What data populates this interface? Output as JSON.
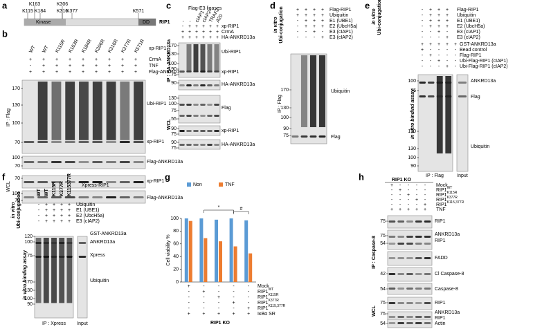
{
  "panels": {
    "a": {
      "letter": "a",
      "sites": [
        "K115",
        "K163",
        "K184",
        "K306",
        "K316",
        "K377",
        "K571"
      ],
      "domains": [
        "Kinase",
        "DD"
      ],
      "protein": "RIP1"
    },
    "b": {
      "letter": "b",
      "lanes": [
        "WT",
        "WT",
        "K115R",
        "K163R",
        "K184R",
        "K306R",
        "K316R",
        "K377R",
        "K571R"
      ],
      "header": "xp-RIP1",
      "conditions": [
        {
          "label": "CrmA",
          "signs": [
            "+",
            "+",
            "+",
            "+",
            "+",
            "+",
            "+",
            "+",
            "+"
          ]
        },
        {
          "label": "TNF",
          "signs": [
            "-",
            "+",
            "+",
            "+",
            "+",
            "+",
            "+",
            "+",
            "+"
          ]
        },
        {
          "label": "Flag-ANKRD13a",
          "signs": [
            "+",
            "+",
            "+",
            "+",
            "+",
            "+",
            "+",
            "+",
            "+"
          ]
        }
      ],
      "groups": [
        "IP : Flag",
        "WCL"
      ],
      "bands": [
        "Ubi-RIP1",
        "xp-RIP1",
        "Flag-ANKRD13a",
        "xp-RIP1",
        "Flag-ANKRD13a"
      ],
      "markers": [
        170,
        130,
        100,
        70,
        100,
        70,
        70,
        100,
        70
      ]
    },
    "c": {
      "letter": "c",
      "header": "Flag-E3 ligases",
      "lanes": [
        "-",
        "-",
        "cIAP1",
        "cIAP2",
        "TRAF2",
        "A20"
      ],
      "conditions": [
        {
          "label": "xp-RIP1",
          "signs": [
            "-",
            "+",
            "+",
            "+",
            "+",
            "+"
          ]
        },
        {
          "label": "CrmA",
          "signs": [
            "+",
            "+",
            "+",
            "+",
            "+",
            "+"
          ]
        },
        {
          "label": "HA-ANKRD13a",
          "signs": [
            "+",
            "+",
            "+",
            "+",
            "+",
            "+"
          ]
        }
      ],
      "groups": [
        "IP : HA-ANKRD13a",
        "WCL"
      ],
      "bands": [
        "Ubi-RIP1",
        "xp-RIP1",
        "HA-ANKRD13a",
        "Flag",
        "xp-RIP1",
        "HA-ANKRD13a"
      ],
      "markers": [
        170,
        130,
        100,
        90,
        75,
        90,
        130,
        100,
        75,
        55,
        90,
        75,
        90,
        75
      ]
    },
    "d": {
      "letter": "d",
      "side": [
        "in vitro",
        "Ubi-conjugation"
      ],
      "conditions": [
        {
          "label": "Flag-RIP1",
          "signs": [
            "+",
            "+",
            "+",
            "+"
          ]
        },
        {
          "label": "Ubiquitin",
          "signs": [
            "+",
            "+",
            "+",
            "+"
          ]
        },
        {
          "label": "E1 (UBE1)",
          "signs": [
            "-",
            "+",
            "+",
            "+"
          ]
        },
        {
          "label": "E2 (UbcH5a)",
          "signs": [
            "-",
            "+",
            "+",
            "+"
          ]
        },
        {
          "label": "E3 (cIAP1)",
          "signs": [
            "-",
            "-",
            "+",
            "-"
          ]
        },
        {
          "label": "E3 (cIAP2)",
          "signs": [
            "-",
            "-",
            "-",
            "+"
          ]
        }
      ],
      "groups": [
        "IP : Flag"
      ],
      "bands": [
        "Ubiquitin",
        "Flag"
      ],
      "markers": [
        170,
        130,
        100,
        90,
        75
      ]
    },
    "e": {
      "letter": "e",
      "side": [
        "in vitro",
        "Ubi-conjugation",
        "in vitro bindind assay"
      ],
      "conditions": [
        {
          "label": "Flag-RIP1",
          "signs": [
            "-",
            "+",
            "+",
            "+"
          ]
        },
        {
          "label": "Ubiquitin",
          "signs": [
            "-",
            "+",
            "+",
            "+"
          ]
        },
        {
          "label": "E1 (UBE1)",
          "signs": [
            "-",
            "+",
            "+",
            "+"
          ]
        },
        {
          "label": "E2 (UbcH5a)",
          "signs": [
            "-",
            "+",
            "+",
            "+"
          ]
        },
        {
          "label": "E3 (cIAP1)",
          "signs": [
            "-",
            "-",
            "+",
            "-"
          ]
        },
        {
          "label": "E3 (cIAP2)",
          "signs": [
            "-",
            "-",
            "-",
            "+"
          ]
        }
      ],
      "binding": [
        {
          "label": "GST-ANKRD13a",
          "signs": [
            "+",
            "+",
            "+",
            "+",
            "+"
          ]
        },
        {
          "label": "Bead control",
          "signs": [
            "+",
            "-",
            "-",
            "-",
            "-"
          ]
        },
        {
          "label": "Flag-RIP1",
          "signs": [
            "-",
            "+",
            "-",
            "-",
            "-"
          ]
        },
        {
          "label": "Ubi-Flag-RIP1 (cIAP1)",
          "signs": [
            "-",
            "-",
            "+",
            "-",
            "-"
          ]
        },
        {
          "label": "Ubi-Flag-RIP1 (cIAP2)",
          "signs": [
            "-",
            "-",
            "-",
            "+",
            "-"
          ]
        }
      ],
      "bands": [
        "ANKRD13a",
        "Flag",
        "Ubiquitin"
      ],
      "footer": [
        "IP : Flag",
        "Input"
      ],
      "markers": [
        100,
        75,
        170,
        130,
        100,
        90
      ]
    },
    "f": {
      "letter": "f",
      "header": "Xpress-RIP1",
      "lanes": [
        "WT",
        "WT",
        "K115R",
        "K377R",
        "K115377R"
      ],
      "side": [
        "in vitro",
        "Ubi-conjugation",
        "in vitro binding assay"
      ],
      "conditions": [
        {
          "label": "Ubiquitin",
          "signs": [
            "-",
            "+",
            "+",
            "+",
            "+"
          ]
        },
        {
          "label": "E1 (UBE1)",
          "signs": [
            "-",
            "+",
            "+",
            "+",
            "+"
          ]
        },
        {
          "label": "E2 (UbcH5a)",
          "signs": [
            "-",
            "+",
            "+",
            "+",
            "+"
          ]
        },
        {
          "label": "E3 (cIAP2)",
          "signs": [
            "-",
            "+",
            "+",
            "+",
            "+"
          ]
        }
      ],
      "gst": "GST-ANKRD13a",
      "bands": [
        "ANKRD13a",
        "Xpress",
        "Ubiquitin"
      ],
      "footer": [
        "IP : Xpress",
        "Input"
      ],
      "markers": [
        120,
        100,
        75,
        170,
        130,
        100,
        90
      ]
    },
    "g": {
      "letter": "g"
    },
    "h": {
      "letter": "h",
      "header": "RIP1 KO",
      "conditions": [
        {
          "label": {
            "base": "Mock"
          },
          "signs": [
            "+",
            "-",
            "-",
            "-",
            "-"
          ]
        },
        {
          "label": {
            "base": "RIP1",
            "sup": "WT"
          },
          "signs": [
            "-",
            "+",
            "-",
            "-",
            "-"
          ]
        },
        {
          "label": {
            "base": "RIP1",
            "sup": "K115R"
          },
          "signs": [
            "-",
            "-",
            "+",
            "-",
            "-"
          ]
        },
        {
          "label": {
            "base": "RIP1",
            "sup": "K377R"
          },
          "signs": [
            "-",
            "-",
            "-",
            "+",
            "-"
          ]
        },
        {
          "label": {
            "base": "RIP1",
            "sup": "K115,377R"
          },
          "signs": [
            "-",
            "-",
            "-",
            "-",
            "+"
          ]
        },
        {
          "label": {
            "base": "TNF"
          },
          "signs": [
            "+",
            "+",
            "+",
            "+",
            "+"
          ]
        }
      ],
      "groups": [
        "IP : Caspase-8",
        "WCL"
      ],
      "bands": [
        "RIP1",
        "ANKRD13a",
        "RIP1",
        "FADD",
        "Cl Caspase-8",
        "Caspase-8",
        "RIP1",
        "ANKRD13a",
        "RIP1",
        "Actin"
      ],
      "markers": [
        75,
        75,
        54,
        42,
        54,
        75,
        75,
        54
      ]
    }
  },
  "chart_data": {
    "type": "bar",
    "ylabel": "Cell viability %",
    "ylim": [
      0,
      100
    ],
    "yticks": [
      0,
      20,
      40,
      60,
      80,
      100
    ],
    "series": [
      {
        "name": "Non",
        "color": "#5b9bd5",
        "values": [
          100,
          100,
          98,
          100,
          97
        ]
      },
      {
        "name": "TNF",
        "color": "#ed7d31",
        "values": [
          96,
          69,
          64,
          56,
          45
        ]
      }
    ],
    "conditions": [
      {
        "label": {
          "base": "Mock"
        },
        "signs": [
          "+",
          "-",
          "-",
          "-",
          "-"
        ]
      },
      {
        "label": {
          "base": "RIP1",
          "sup": "WT"
        },
        "signs": [
          "-",
          "+",
          "-",
          "-",
          "-"
        ]
      },
      {
        "label": {
          "base": "RIP1",
          "sup": "K115R"
        },
        "signs": [
          "-",
          "-",
          "+",
          "-",
          "-"
        ]
      },
      {
        "label": {
          "base": "RIP1",
          "sup": "K377R"
        },
        "signs": [
          "-",
          "-",
          "-",
          "+",
          "-"
        ]
      },
      {
        "label": {
          "base": "RIP1",
          "sup": "K115,377R"
        },
        "signs": [
          "-",
          "-",
          "-",
          "-",
          "+"
        ]
      },
      {
        "label": {
          "base": "IκBα SR"
        },
        "signs": [
          "+",
          "+",
          "+",
          "+",
          "+"
        ]
      }
    ],
    "footer": "RIP1 KO",
    "annotations": [
      "*",
      "#"
    ]
  }
}
